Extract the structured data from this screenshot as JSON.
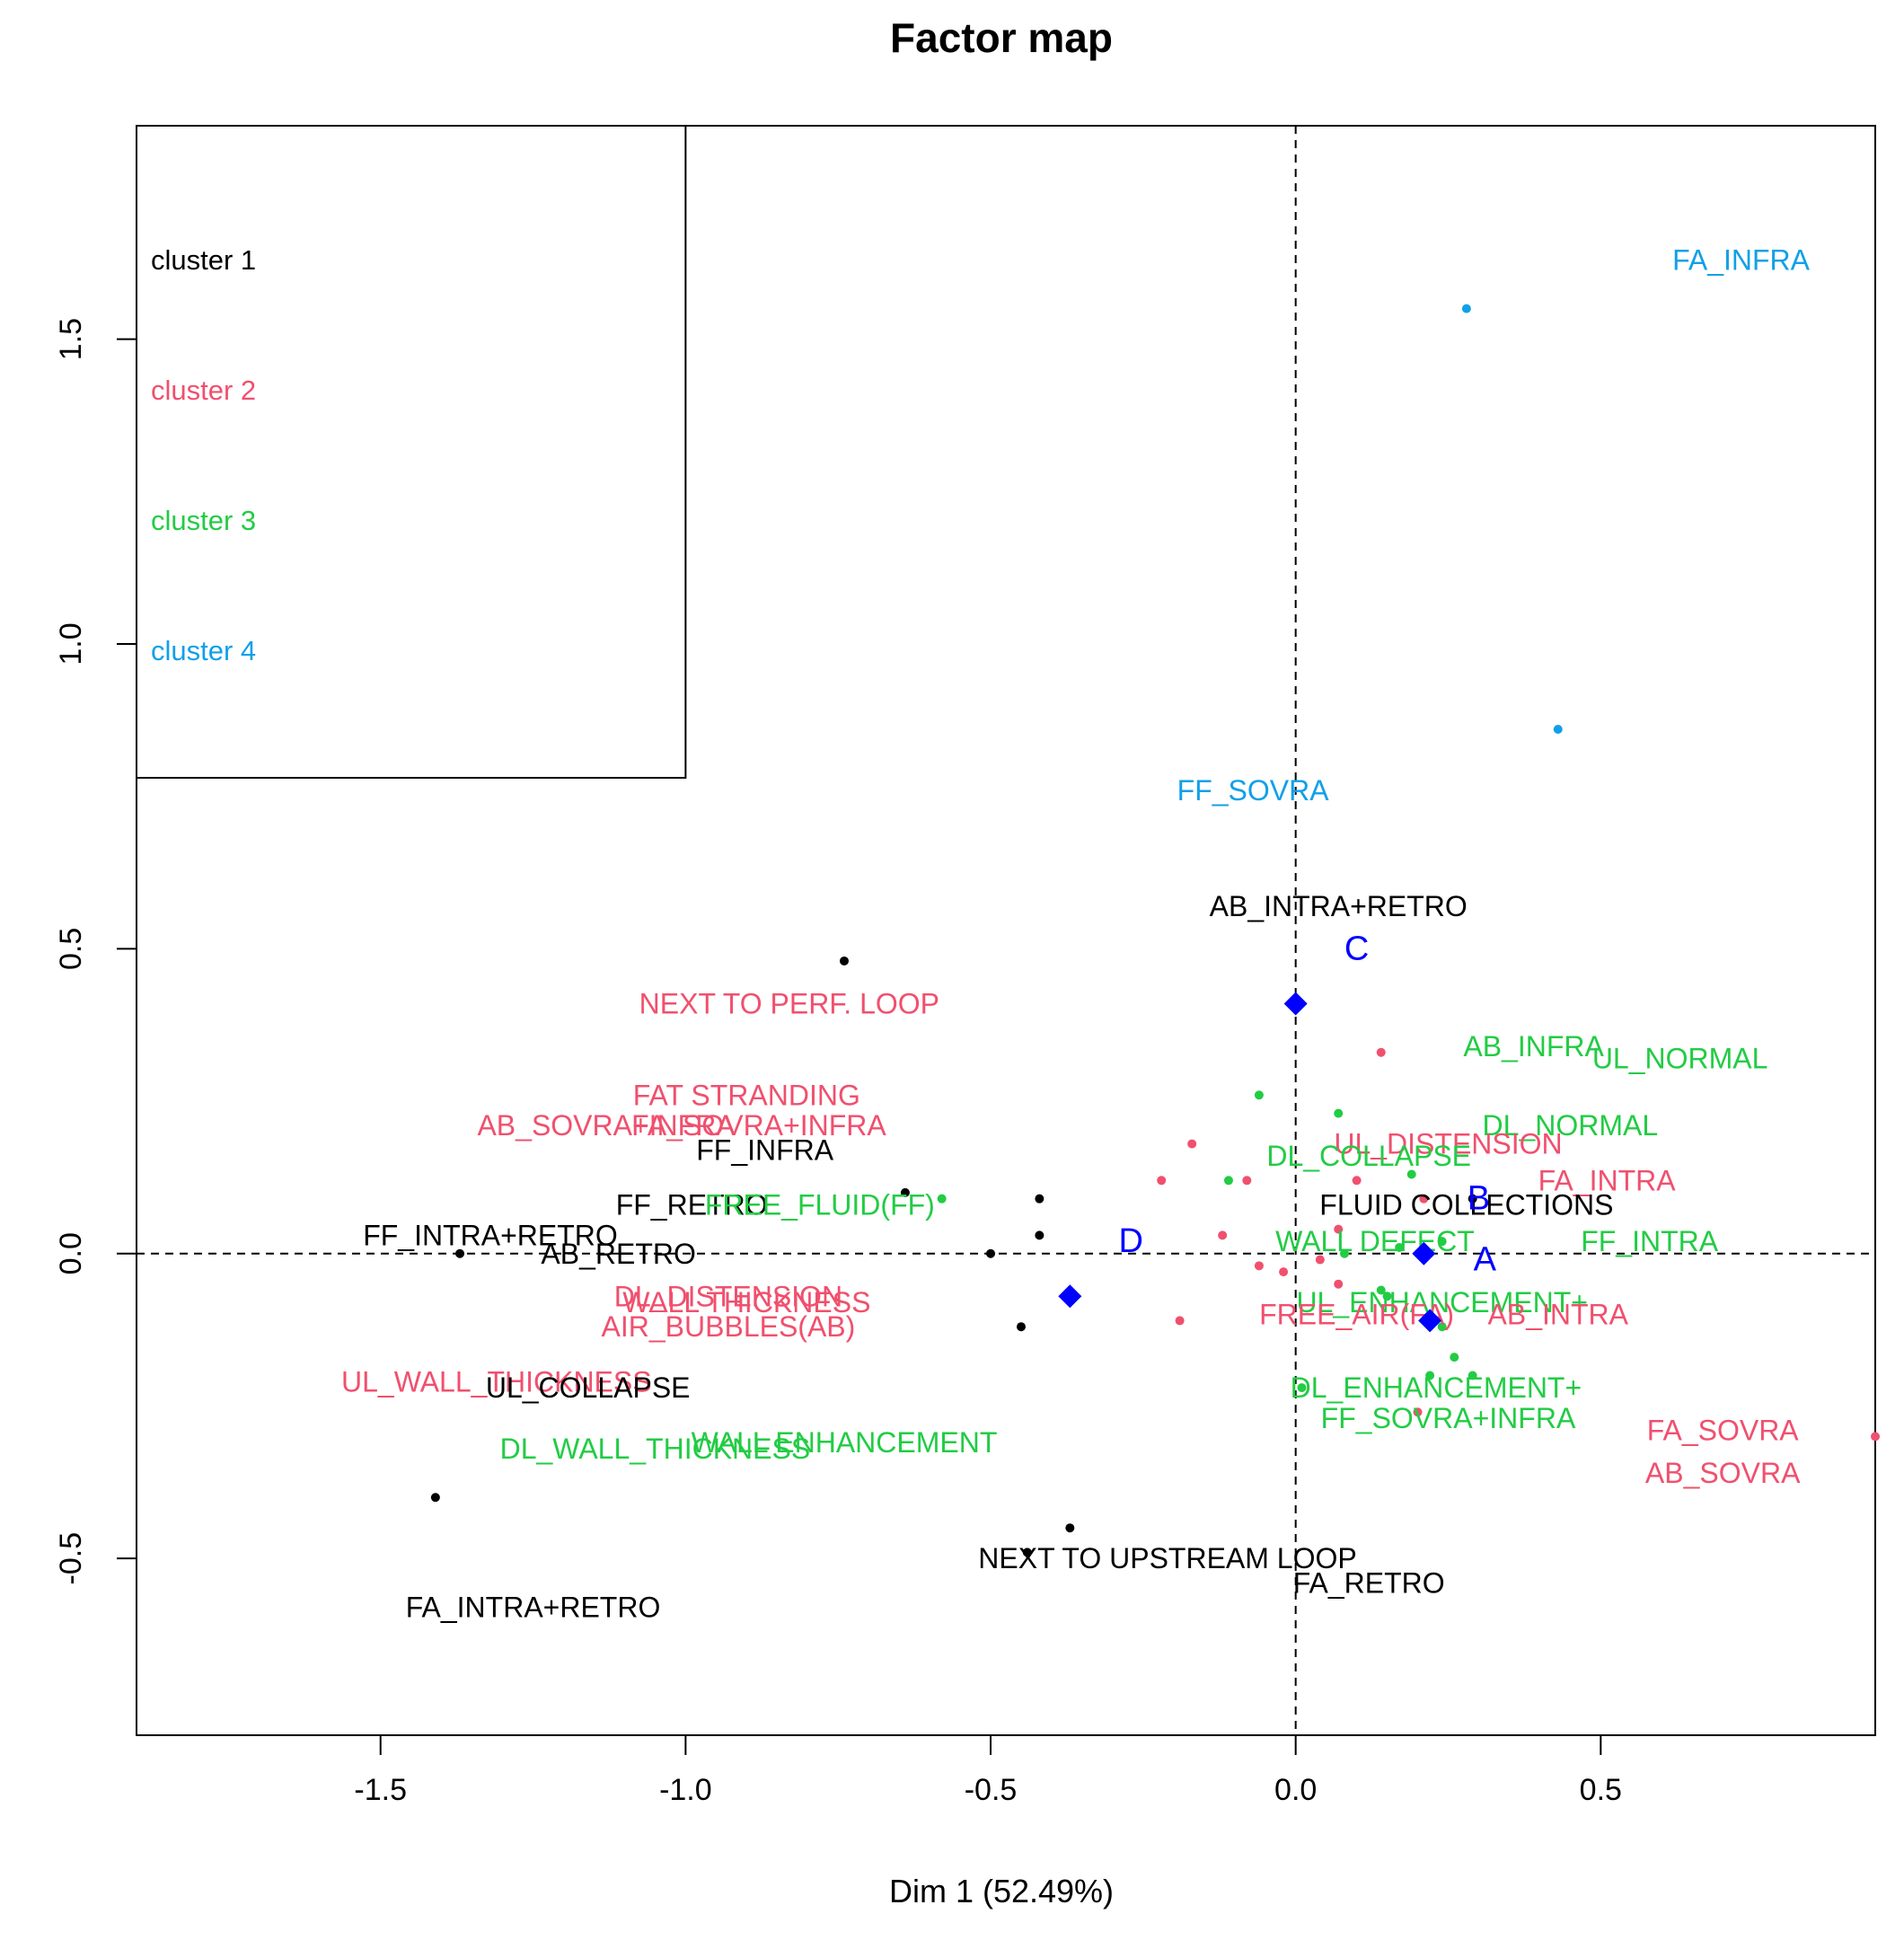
{
  "chart_data": {
    "type": "scatter",
    "title": "Factor map",
    "xlabel": "Dim 1 (52.49%)",
    "ylabel": "",
    "xlim": [
      -1.9,
      0.95
    ],
    "ylim": [
      -0.79,
      1.85
    ],
    "xticks": [
      -1.5,
      -1.0,
      -0.5,
      0.0,
      0.5
    ],
    "xtick_labels": [
      "-1.5",
      "-1.0",
      "-0.5",
      "0.0",
      "0.5"
    ],
    "yticks": [
      -0.5,
      0.0,
      0.5,
      1.0,
      1.5
    ],
    "ytick_labels": [
      "-0.5",
      "0.0",
      "0.5",
      "1.0",
      "1.5"
    ],
    "reference_lines": {
      "x": 0,
      "y": 0,
      "style": "dashed"
    },
    "legend": {
      "placement": "top-left",
      "entries": [
        {
          "label": "cluster 1",
          "color": "#000000"
        },
        {
          "label": "cluster 2",
          "color": "#f0506e"
        },
        {
          "label": "cluster 3",
          "color": "#22cc44"
        },
        {
          "label": "cluster 4",
          "color": "#11a0e8"
        }
      ]
    },
    "colors": {
      "1": "#000000",
      "2": "#f0506e",
      "3": "#22cc44",
      "4": "#11a0e8",
      "centroid": "#0000ff"
    },
    "points": [
      {
        "label": "FA_INFRA",
        "x": 0.28,
        "y": 1.55,
        "lx": 0.73,
        "ly": 1.63,
        "cluster": 4
      },
      {
        "label": "FF_SOVRA",
        "x": 0.43,
        "y": 0.86,
        "lx": -0.07,
        "ly": 0.76,
        "cluster": 4
      },
      {
        "label": "AB_INTRA+RETRO",
        "x": -0.74,
        "y": 0.48,
        "lx": 0.07,
        "ly": 0.57,
        "cluster": 1
      },
      {
        "label": "NEXT TO PERF. LOOP",
        "x": 0.14,
        "y": 0.33,
        "lx": -0.83,
        "ly": 0.41,
        "cluster": 2
      },
      {
        "label": "AB_INFRA",
        "x": 0.07,
        "y": 0.23,
        "lx": 0.39,
        "ly": 0.34,
        "cluster": 3
      },
      {
        "label": "UL_NORMAL",
        "x": -0.06,
        "y": 0.26,
        "lx": 0.63,
        "ly": 0.32,
        "cluster": 3
      },
      {
        "label": "FAT STRANDING",
        "x": -0.17,
        "y": 0.18,
        "lx": -0.9,
        "ly": 0.26,
        "cluster": 2
      },
      {
        "label": "AB_SOVRA+INFRA",
        "x": -0.22,
        "y": 0.12,
        "lx": -1.13,
        "ly": 0.21,
        "cluster": 2
      },
      {
        "label": "FA_SOVRA+INFRA",
        "x": -0.08,
        "y": 0.12,
        "lx": -0.88,
        "ly": 0.21,
        "cluster": 2
      },
      {
        "label": "DL_NORMAL",
        "x": 0.19,
        "y": 0.13,
        "lx": 0.45,
        "ly": 0.21,
        "cluster": 3
      },
      {
        "label": "FF_INFRA",
        "x": -0.64,
        "y": 0.1,
        "lx": -0.87,
        "ly": 0.17,
        "cluster": 1
      },
      {
        "label": "UL_DISTENSION",
        "x": 0.1,
        "y": 0.12,
        "lx": 0.25,
        "ly": 0.18,
        "cluster": 2
      },
      {
        "label": "DL_COLLAPSE",
        "x": -0.11,
        "y": 0.12,
        "lx": 0.12,
        "ly": 0.16,
        "cluster": 3
      },
      {
        "label": "FA_INTRA",
        "x": 0.21,
        "y": 0.09,
        "lx": 0.51,
        "ly": 0.12,
        "cluster": 2
      },
      {
        "label": "FF_RETRO",
        "x": -0.42,
        "y": 0.09,
        "lx": -0.99,
        "ly": 0.08,
        "cluster": 1
      },
      {
        "label": "FREE_FLUID(FF)",
        "x": -0.58,
        "y": 0.09,
        "lx": -0.78,
        "ly": 0.08,
        "cluster": 3
      },
      {
        "label": "FLUID COLLECTIONS",
        "x": 0.29,
        "y": 0.09,
        "lx": 0.28,
        "ly": 0.08,
        "cluster": 1
      },
      {
        "label": "FF_INTRA+RETRO",
        "x": -1.37,
        "y": 0.0,
        "lx": -1.32,
        "ly": 0.03,
        "cluster": 1
      },
      {
        "label": "AB_RETRO",
        "x": -0.42,
        "y": 0.03,
        "lx": -1.11,
        "ly": 0.0,
        "cluster": 1
      },
      {
        "label": "WALL DEFECT",
        "x": 0.17,
        "y": 0.01,
        "lx": 0.13,
        "ly": 0.02,
        "cluster": 3
      },
      {
        "label": "FF_INTRA",
        "x": 0.24,
        "y": 0.02,
        "lx": 0.58,
        "ly": 0.02,
        "cluster": 3
      },
      {
        "label": "DL_DISTENSION",
        "x": -0.12,
        "y": 0.03,
        "lx": -0.93,
        "ly": -0.07,
        "cluster": 2
      },
      {
        "label": "WALL THICKNESS",
        "x": 0.04,
        "y": -0.01,
        "lx": -0.9,
        "ly": -0.08,
        "cluster": 2
      },
      {
        "label": "UL_ENHANCEMENT+",
        "x": 0.14,
        "y": -0.06,
        "lx": 0.24,
        "ly": -0.08,
        "cluster": 3
      },
      {
        "label": "FREE_AIR(FA)",
        "x": -0.19,
        "y": -0.11,
        "lx": 0.1,
        "ly": -0.1,
        "cluster": 2
      },
      {
        "label": "AB_INTRA",
        "x": 0.07,
        "y": -0.05,
        "lx": 0.43,
        "ly": -0.1,
        "cluster": 2
      },
      {
        "label": "AIR_BUBBLES(AB)",
        "x": -0.06,
        "y": -0.02,
        "lx": -0.93,
        "ly": -0.12,
        "cluster": 2
      },
      {
        "label": "UL_WALL_THICKNESS",
        "x": -0.02,
        "y": -0.03,
        "lx": -1.31,
        "ly": -0.21,
        "cluster": 2
      },
      {
        "label": "UL_COLLAPSE",
        "x": -0.5,
        "y": 0.0,
        "lx": -1.16,
        "ly": -0.22,
        "cluster": 1
      },
      {
        "label": "DL_ENHANCEMENT+",
        "x": 0.26,
        "y": -0.17,
        "lx": 0.23,
        "ly": -0.22,
        "cluster": 3
      },
      {
        "label": "FF_SOVRA+INFRA",
        "x": 0.29,
        "y": -0.2,
        "lx": 0.25,
        "ly": -0.27,
        "cluster": 3
      },
      {
        "label": "WALL ENHANCEMENT",
        "x": 0.01,
        "y": -0.22,
        "lx": -0.74,
        "ly": -0.31,
        "cluster": 3
      },
      {
        "label": "DL_WALL_THICKNESS",
        "x": 0.24,
        "y": -0.12,
        "lx": -1.05,
        "ly": -0.32,
        "cluster": 3
      },
      {
        "label": "FA_SOVRA",
        "x": 0.2,
        "y": -0.26,
        "lx": 0.7,
        "ly": -0.29,
        "cluster": 2
      },
      {
        "label": "AB_SOVRA",
        "x": 0.95,
        "y": -0.3,
        "lx": 0.7,
        "ly": -0.36,
        "cluster": 2
      },
      {
        "label": "NEXT TO UPSTREAM LOOP",
        "x": -0.37,
        "y": -0.45,
        "lx": -0.21,
        "ly": -0.5,
        "cluster": 1
      },
      {
        "label": "FA_RETRO",
        "x": -0.44,
        "y": -0.49,
        "lx": 0.12,
        "ly": -0.54,
        "cluster": 1
      },
      {
        "label": "FA_INTRA+RETRO",
        "x": -1.41,
        "y": -0.4,
        "lx": -1.25,
        "ly": -0.58,
        "cluster": 1
      },
      {
        "label": "",
        "x": -0.45,
        "y": -0.12,
        "cluster": 1
      },
      {
        "label": "",
        "x": 0.22,
        "y": -0.2,
        "cluster": 3
      },
      {
        "label": "",
        "x": 0.15,
        "y": -0.07,
        "cluster": 3
      },
      {
        "label": "",
        "x": 0.08,
        "y": 0.0,
        "cluster": 3
      },
      {
        "label": "",
        "x": 0.07,
        "y": 0.04,
        "cluster": 2
      }
    ],
    "centroids": [
      {
        "label": "A",
        "x": 0.22,
        "y": -0.11,
        "lx": 0.31,
        "ly": -0.01
      },
      {
        "label": "B",
        "x": 0.21,
        "y": 0.0,
        "lx": 0.3,
        "ly": 0.09
      },
      {
        "label": "C",
        "x": 0.0,
        "y": 0.41,
        "lx": 0.1,
        "ly": 0.5
      },
      {
        "label": "D",
        "x": -0.37,
        "y": -0.07,
        "lx": -0.27,
        "ly": 0.02
      }
    ]
  }
}
